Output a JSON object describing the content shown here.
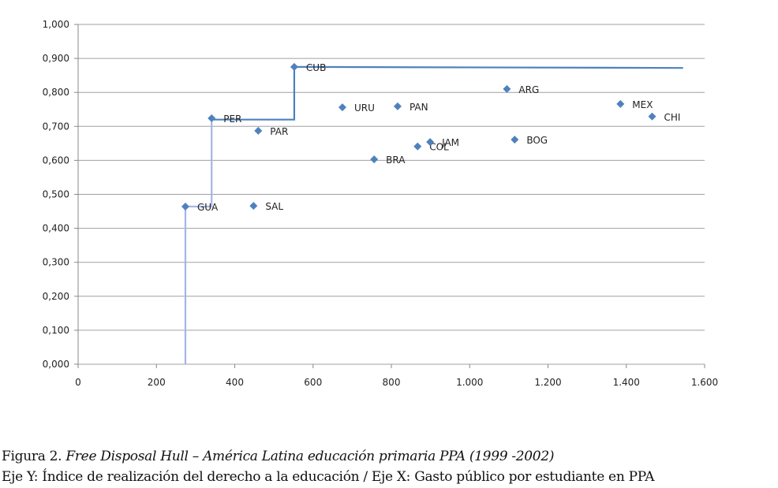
{
  "chart_data": {
    "type": "scatter",
    "xlim": [
      0,
      1600
    ],
    "ylim": [
      0,
      1.0
    ],
    "x_ticks": [
      "0",
      "200",
      "400",
      "600",
      "800",
      "1.000",
      "1.200",
      "1.400",
      "1.600"
    ],
    "y_ticks": [
      "0,000",
      "0,100",
      "0,200",
      "0,300",
      "0,400",
      "0,500",
      "0,600",
      "0,700",
      "0,800",
      "0,900",
      "1,000"
    ],
    "grid": "horizontal",
    "marker_color": "#4f81bd",
    "points": [
      {
        "label": "GUA",
        "x": 274,
        "y": 0.464
      },
      {
        "label": "PER",
        "x": 341,
        "y": 0.724
      },
      {
        "label": "PAR",
        "x": 460,
        "y": 0.687
      },
      {
        "label": "SAL",
        "x": 448,
        "y": 0.466
      },
      {
        "label": "CUB",
        "x": 552,
        "y": 0.875
      },
      {
        "label": "URU",
        "x": 675,
        "y": 0.756
      },
      {
        "label": "PAN",
        "x": 816,
        "y": 0.759
      },
      {
        "label": "BRA",
        "x": 756,
        "y": 0.603
      },
      {
        "label": "COL",
        "x": 867,
        "y": 0.641
      },
      {
        "label": "JAM",
        "x": 899,
        "y": 0.654
      },
      {
        "label": "ARG",
        "x": 1095,
        "y": 0.81
      },
      {
        "label": "BOG",
        "x": 1115,
        "y": 0.661
      },
      {
        "label": "MEX",
        "x": 1385,
        "y": 0.766
      },
      {
        "label": "CHI",
        "x": 1466,
        "y": 0.729
      }
    ],
    "frontier": {
      "segments": [
        {
          "color": "#a6b4e4",
          "points": [
            [
              274,
              0
            ],
            [
              274,
              0.464
            ],
            [
              341,
              0.464
            ],
            [
              341,
              0.724
            ]
          ]
        },
        {
          "color": "#4f81bd",
          "points": [
            [
              341,
              0.72
            ],
            [
              552,
              0.72
            ],
            [
              552,
              0.875
            ],
            [
              1545,
              0.872
            ]
          ]
        }
      ]
    }
  },
  "caption": {
    "prefix": "Figura  2. ",
    "title": "Free Disposal Hull – América Latina educación  primaria PPA (1999 -2002)",
    "axes_note": "Eje Y: Índice de realización del derecho a la educación / Eje X: Gasto público por estudiante en PPA"
  }
}
